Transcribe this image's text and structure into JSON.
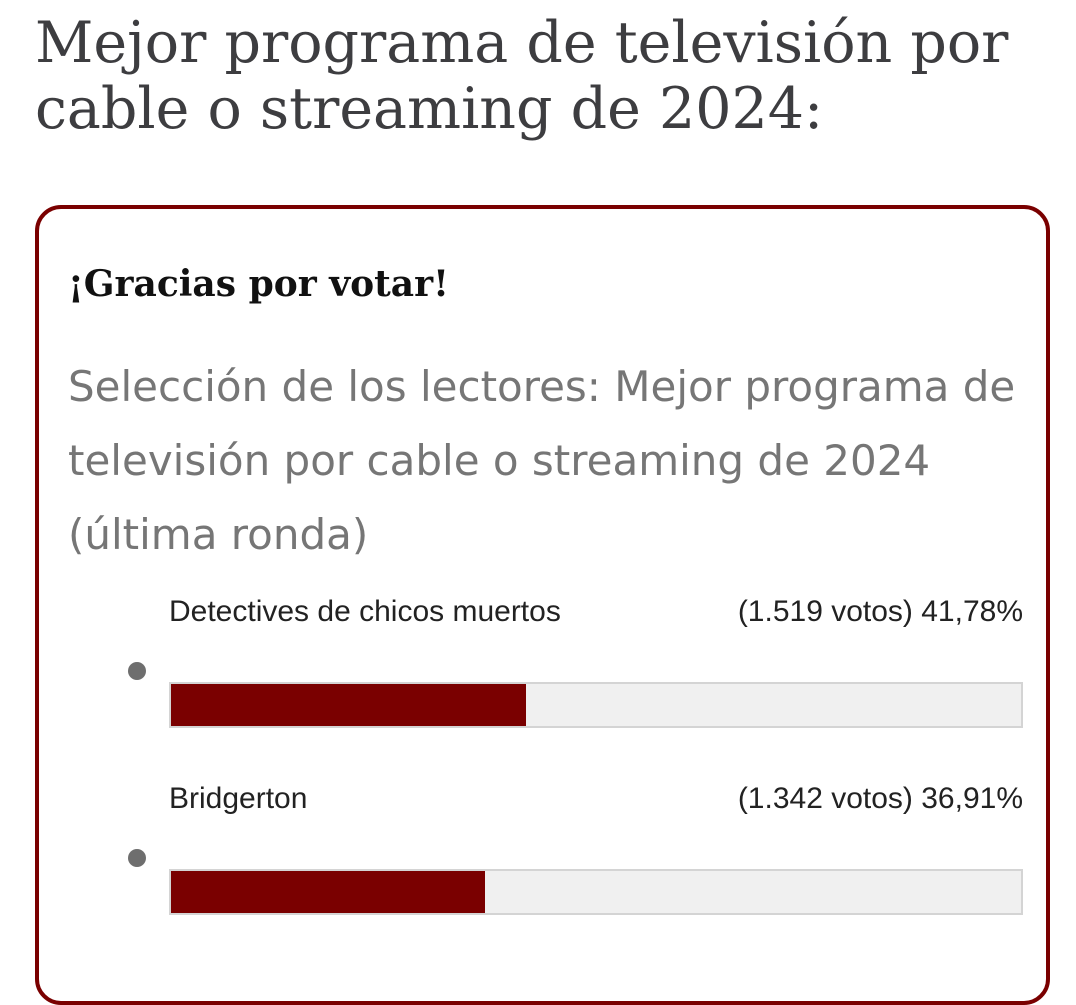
{
  "page": {
    "title": "Mejor programa de televisión por cable o streaming de 2024:"
  },
  "poll": {
    "thanks_message": "¡Gracias por votar!",
    "question": "Selección de los lectores: Mejor programa de televisión por cable o streaming de 2024 (última ronda)",
    "accent_color": "#7a0000",
    "options": [
      {
        "label": "Detectives de chicos muertos",
        "votes_text": "(1.519 votos)",
        "percent_text": "41,78%",
        "percent": 41.78
      },
      {
        "label": "Bridgerton",
        "votes_text": "(1.342 votos)",
        "percent_text": "36,91%",
        "percent": 36.91
      }
    ]
  }
}
